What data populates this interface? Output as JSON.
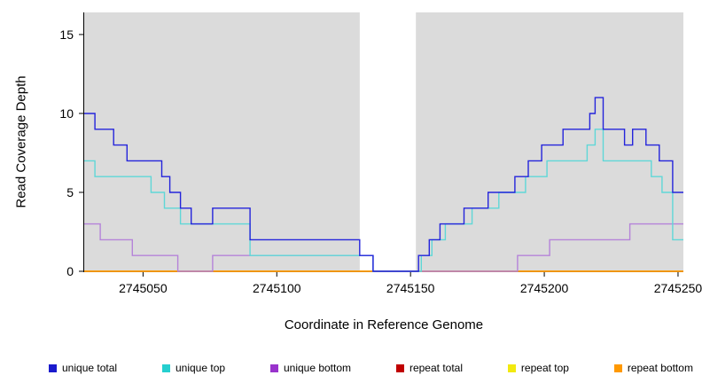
{
  "chart_data": {
    "type": "line",
    "subtype": "step-coverage",
    "title": "",
    "xlabel": "Coordinate in Reference Genome",
    "ylabel": "Read Coverage Depth",
    "xlim": [
      2745028,
      2745252
    ],
    "ylim": [
      0,
      16.4
    ],
    "xticks": [
      2745050,
      2745100,
      2745150,
      2745200,
      2745250
    ],
    "yticks": [
      0,
      5,
      10,
      15
    ],
    "plot_bg": "#DBDBDB",
    "gap_region": [
      2745131,
      2745152
    ],
    "grid": false,
    "series": [
      {
        "name": "repeat total",
        "color": "#CC0000",
        "points": [
          [
            2745028,
            0
          ]
        ]
      },
      {
        "name": "repeat top",
        "color": "#F0E926",
        "points": [
          [
            2745028,
            0
          ]
        ]
      },
      {
        "name": "repeat bottom",
        "color": "#FF9900",
        "points": [
          [
            2745028,
            0
          ]
        ]
      },
      {
        "name": "unique bottom",
        "color": "#B583D9",
        "points": [
          [
            2745028,
            3
          ],
          [
            2745034,
            2
          ],
          [
            2745046,
            1
          ],
          [
            2745063,
            0
          ],
          [
            2745076,
            1
          ],
          [
            2745136,
            0
          ],
          [
            2745190,
            1
          ],
          [
            2745202,
            2
          ],
          [
            2745232,
            3
          ]
        ]
      },
      {
        "name": "unique top",
        "color": "#5FD7D7",
        "points": [
          [
            2745028,
            7
          ],
          [
            2745032,
            6
          ],
          [
            2745053,
            5
          ],
          [
            2745058,
            4
          ],
          [
            2745064,
            3
          ],
          [
            2745090,
            1
          ],
          [
            2745136,
            0
          ],
          [
            2745154,
            1
          ],
          [
            2745158,
            2
          ],
          [
            2745163,
            3
          ],
          [
            2745173,
            4
          ],
          [
            2745183,
            5
          ],
          [
            2745193,
            6
          ],
          [
            2745201,
            7
          ],
          [
            2745216,
            8
          ],
          [
            2745219,
            9
          ],
          [
            2745222,
            7
          ],
          [
            2745240,
            6
          ],
          [
            2745244,
            5
          ],
          [
            2745248,
            2
          ]
        ]
      },
      {
        "name": "unique total",
        "color": "#2424DB",
        "points": [
          [
            2745028,
            10
          ],
          [
            2745032,
            9
          ],
          [
            2745039,
            8
          ],
          [
            2745044,
            7
          ],
          [
            2745057,
            6
          ],
          [
            2745060,
            5
          ],
          [
            2745064,
            4
          ],
          [
            2745068,
            3
          ],
          [
            2745076,
            4
          ],
          [
            2745090,
            2
          ],
          [
            2745131,
            1
          ],
          [
            2745136,
            0
          ],
          [
            2745153,
            1
          ],
          [
            2745157,
            2
          ],
          [
            2745161,
            3
          ],
          [
            2745170,
            4
          ],
          [
            2745179,
            5
          ],
          [
            2745189,
            6
          ],
          [
            2745194,
            7
          ],
          [
            2745199,
            8
          ],
          [
            2745207,
            9
          ],
          [
            2745217,
            10
          ],
          [
            2745219,
            11
          ],
          [
            2745222,
            9
          ],
          [
            2745230,
            8
          ],
          [
            2745233,
            9
          ],
          [
            2745238,
            8
          ],
          [
            2745243,
            7
          ],
          [
            2745248,
            5
          ]
        ]
      }
    ],
    "legend": [
      {
        "label": "unique total",
        "color": "#1A1ACD"
      },
      {
        "label": "unique top",
        "color": "#25CFCF"
      },
      {
        "label": "unique bottom",
        "color": "#9933CC"
      },
      {
        "label": "repeat total",
        "color": "#C00000"
      },
      {
        "label": "repeat top",
        "color": "#F2E90F"
      },
      {
        "label": "repeat bottom",
        "color": "#FF9900"
      }
    ],
    "legend_position": "bottom"
  }
}
